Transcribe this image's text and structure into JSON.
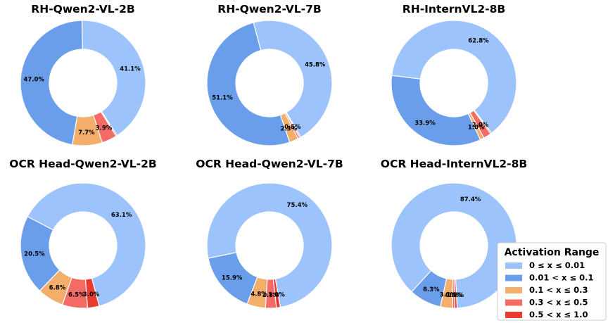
{
  "legend": {
    "title": "Activation Range",
    "entries": [
      {
        "label": "0 ≤ x ≤ 0.01",
        "color": "#9CC3FC"
      },
      {
        "label": "0.01 < x ≤ 0.1",
        "color": "#6B9EEA"
      },
      {
        "label": "0.1 < x ≤ 0.3",
        "color": "#F4AE6B"
      },
      {
        "label": "0.3 < x ≤ 0.5",
        "color": "#F46A64"
      },
      {
        "label": "0.5 < x ≤ 1.0",
        "color": "#EA3B30"
      }
    ]
  },
  "chart_data": [
    {
      "type": "pie",
      "title": "RH-Qwen2-VL-2B",
      "values": [
        41.1,
        47.0,
        7.7,
        3.9,
        0.3
      ],
      "labels": [
        "41.1%",
        "47.0%",
        "7.7%",
        "3.9%",
        ""
      ]
    },
    {
      "type": "pie",
      "title": "RH-Qwen2-VL-7B",
      "values": [
        45.8,
        51.1,
        2.3,
        0.5,
        0.3
      ],
      "labels": [
        "45.8%",
        "51.1%",
        "2.3%",
        "0.5%",
        ""
      ]
    },
    {
      "type": "pie",
      "title": "RH-InternVL2-8B",
      "values": [
        62.8,
        33.9,
        1.0,
        2.0,
        0.3
      ],
      "labels": [
        "62.8%",
        "33.9%",
        "1.0%",
        "2.0%",
        ""
      ]
    },
    {
      "type": "pie",
      "title": "OCR Head-Qwen2-VL-2B",
      "values": [
        63.1,
        20.5,
        6.8,
        6.5,
        3.0
      ],
      "labels": [
        "63.1%",
        "20.5%",
        "6.8%",
        "6.5%",
        "3.0%"
      ]
    },
    {
      "type": "pie",
      "title": "OCR Head-Qwen2-VL-7B",
      "values": [
        75.4,
        15.9,
        4.8,
        2.8,
        1.0
      ],
      "labels": [
        "75.4%",
        "15.9%",
        "4.8%",
        "2.8%",
        "1.0%"
      ]
    },
    {
      "type": "pie",
      "title": "OCR Head-InternVL2-8B",
      "values": [
        87.4,
        8.3,
        3.1,
        0.6,
        0.6
      ],
      "labels": [
        "87.4%",
        "8.3%",
        "3.1%",
        "0.6%",
        "0.6%"
      ]
    }
  ]
}
